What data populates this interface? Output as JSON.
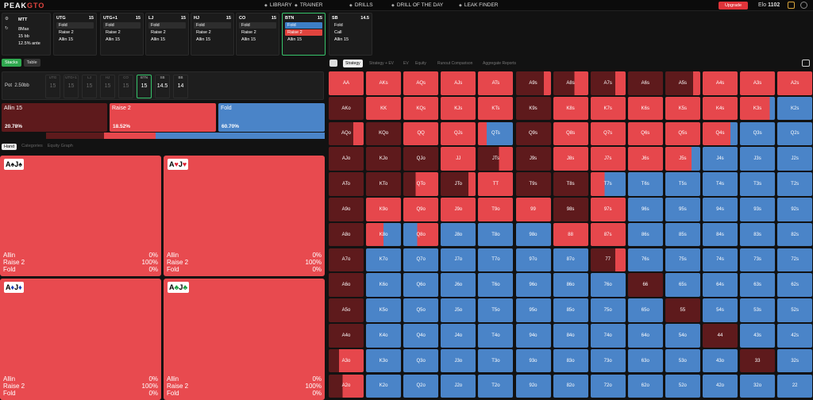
{
  "app": {
    "logo_a": "PEAK",
    "logo_b": "GTO"
  },
  "nav": [
    {
      "label": "LIBRARY",
      "icon": "book-icon"
    },
    {
      "label": "TRAINER",
      "icon": "trainer-icon"
    },
    {
      "label": "DRILLS",
      "icon": "drills-icon"
    },
    {
      "label": "DRILL OF THE DAY",
      "icon": "calendar-icon"
    },
    {
      "label": "LEAK FINDER",
      "icon": "flame-icon"
    }
  ],
  "upgrade": "Upgrade",
  "elo": {
    "label": "Elo",
    "value": "1102"
  },
  "settings": {
    "format": "MTT",
    "table": "8Max",
    "stack": "15 bb",
    "ante": "12.5% ante"
  },
  "positions": [
    {
      "name": "UTG",
      "stack": "15",
      "actions": [
        "Fold",
        "Raise 2",
        "Allin 15"
      ],
      "hl": 0,
      "hlType": "act"
    },
    {
      "name": "UTG+1",
      "stack": "15",
      "actions": [
        "Fold",
        "Raise 2",
        "Allin 15"
      ],
      "hl": 0,
      "hlType": "act"
    },
    {
      "name": "LJ",
      "stack": "15",
      "actions": [
        "Fold",
        "Raise 2",
        "Allin 15"
      ],
      "hl": 0,
      "hlType": "act"
    },
    {
      "name": "HJ",
      "stack": "15",
      "actions": [
        "Fold",
        "Raise 2",
        "Allin 15"
      ],
      "hl": 0,
      "hlType": "act"
    },
    {
      "name": "CO",
      "stack": "15",
      "actions": [
        "Fold",
        "Raise 2",
        "Allin 15"
      ],
      "hl": 0,
      "hlType": "act"
    },
    {
      "name": "BTN",
      "stack": "15",
      "actions": [
        "Fold",
        "Raise 2",
        "Allin 15"
      ],
      "hl": 1,
      "hlType": "raise-hl"
    },
    {
      "name": "SB",
      "stack": "14.5",
      "actions": [
        "Fold",
        "Call",
        "Allin 15"
      ],
      "hl": -1,
      "hlType": ""
    }
  ],
  "tabs": [
    "Stacks",
    "Table"
  ],
  "pot": {
    "label": "Pot",
    "value": "2.50bb"
  },
  "seats": [
    {
      "name": "UTG",
      "stack": "15"
    },
    {
      "name": "UTG+1",
      "stack": "15"
    },
    {
      "name": "LJ",
      "stack": "15"
    },
    {
      "name": "HJ",
      "stack": "15"
    },
    {
      "name": "CO",
      "stack": "15"
    },
    {
      "name": "BTN",
      "stack": "15"
    },
    {
      "name": "SB",
      "stack": "14.5"
    },
    {
      "name": "BB",
      "stack": "14"
    }
  ],
  "strategy": [
    {
      "name": "Allin 15",
      "pct": "20.78%",
      "color": "#5e1a1c",
      "frac": 0.2078
    },
    {
      "name": "Raise 2",
      "pct": "18.52%",
      "color": "#e6474c",
      "frac": 0.1852
    },
    {
      "name": "Fold",
      "pct": "60.70%",
      "color": "#4a84c8",
      "frac": 0.607
    }
  ],
  "hand_tabs": [
    "Hand",
    "Categories",
    "Equity Graph"
  ],
  "combos": [
    {
      "r1": "A",
      "s1": "♠",
      "c1": "sb",
      "r2": "J",
      "s2": "♠",
      "c2": "sb",
      "allin": "0%",
      "raise": "100%",
      "fold": "0%"
    },
    {
      "r1": "A",
      "s1": "♥",
      "c1": "sr",
      "r2": "J",
      "s2": "♥",
      "c2": "sr",
      "allin": "0%",
      "raise": "100%",
      "fold": "0%"
    },
    {
      "r1": "A",
      "s1": "♦",
      "c1": "sbl",
      "r2": "J",
      "s2": "♦",
      "c2": "sbl",
      "allin": "0%",
      "raise": "100%",
      "fold": "0%"
    },
    {
      "r1": "A",
      "s1": "♣",
      "c1": "sgr",
      "r2": "J",
      "s2": "♣",
      "c2": "sgr",
      "allin": "0%",
      "raise": "100%",
      "fold": "0%"
    }
  ],
  "stat_labels": [
    "Allin",
    "Raise 2",
    "Fold"
  ],
  "right_tabs": [
    "Strategy",
    "Strategy + EV",
    "EV",
    "Equity",
    "Runout Comparison",
    "Aggregate Reports"
  ],
  "grid_colors": {
    "fold": "#4a84c8",
    "raise": "#e6474c",
    "allin": "#5e1a1c"
  },
  "grid": [
    [
      "R",
      "R",
      "R",
      "R",
      "R",
      "A:0.8",
      "A:0.6",
      "A:0.7",
      "A",
      "A:0.8",
      "R",
      "R",
      "R"
    ],
    [
      "A",
      "R",
      "R",
      "R",
      "R",
      "A",
      "R",
      "R",
      "R",
      "R",
      "R",
      "R:0.85",
      "F"
    ],
    [
      "A:0.7",
      "A",
      "R",
      "R",
      "R:0.25",
      "A",
      "R",
      "R",
      "R",
      "R",
      "R:0.8",
      "F",
      "F"
    ],
    [
      "A",
      "A",
      "A",
      "R",
      "A:0.6",
      "A",
      "R",
      "R",
      "R",
      "R:0.75",
      "F",
      "F",
      "F"
    ],
    [
      "A",
      "A",
      "A:0.35",
      "A:0.8",
      "R",
      "A",
      "A",
      "R:0.4",
      "F",
      "F",
      "F",
      "F",
      "F"
    ],
    [
      "A",
      "R",
      "R",
      "R",
      "R",
      "R",
      "A",
      "R",
      "F",
      "F",
      "F",
      "F",
      "F"
    ],
    [
      "A",
      "R:0.5",
      "F:0.4R",
      "F",
      "F",
      "F",
      "R",
      "R",
      "F",
      "F",
      "F",
      "F",
      "F"
    ],
    [
      "A",
      "F",
      "F",
      "F",
      "F",
      "F",
      "F",
      "A:0.7",
      "F",
      "F",
      "F",
      "F",
      "F"
    ],
    [
      "A",
      "F",
      "F",
      "F",
      "F",
      "F",
      "F",
      "F",
      "A",
      "F",
      "F",
      "F",
      "F"
    ],
    [
      "A",
      "F",
      "F",
      "F",
      "F",
      "F",
      "F",
      "F",
      "F",
      "A",
      "F",
      "F",
      "F"
    ],
    [
      "A",
      "F",
      "F",
      "F",
      "F",
      "F",
      "F",
      "F",
      "F",
      "F",
      "A",
      "F",
      "F"
    ],
    [
      "A:0.3",
      "F",
      "F",
      "F",
      "F",
      "F",
      "F",
      "F",
      "F",
      "F",
      "F",
      "A",
      "F"
    ],
    [
      "A:0.4",
      "F",
      "F",
      "F",
      "F",
      "F",
      "F",
      "F",
      "F",
      "F",
      "F",
      "F",
      "F"
    ]
  ],
  "ranks": [
    "A",
    "K",
    "Q",
    "J",
    "T",
    "9",
    "8",
    "7",
    "6",
    "5",
    "4",
    "3",
    "2"
  ]
}
